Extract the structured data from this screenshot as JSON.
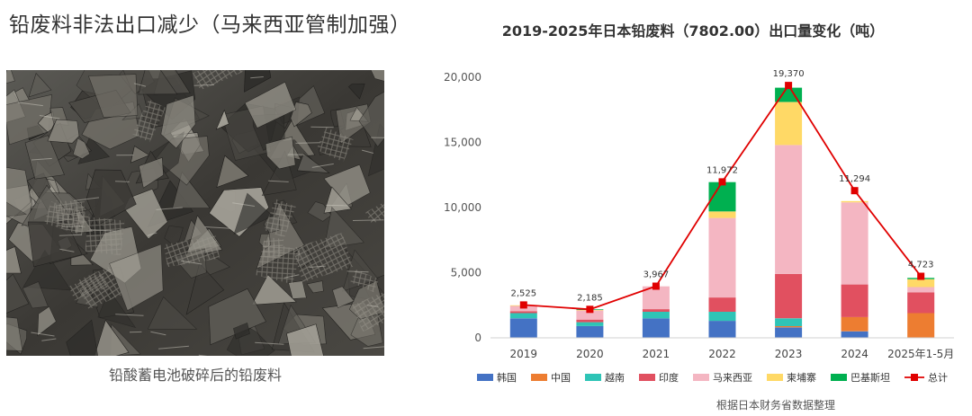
{
  "headline": "铅废料非法出口减少（马来西亚管制加强）",
  "photo": {
    "caption": "铅酸蓄电池破碎后的铅废料"
  },
  "chart_data": {
    "type": "bar",
    "stacked": true,
    "title": "2019-2025年日本铅废料（7802.00）出口量变化（吨）",
    "source_note": "根据日本财务省数据整理",
    "xlabel": "",
    "ylabel": "",
    "ylim": [
      0,
      20000
    ],
    "yticks": [
      0,
      5000,
      10000,
      15000,
      20000
    ],
    "ytick_labels": [
      "0",
      "5,000",
      "10,000",
      "15,000",
      "20,000"
    ],
    "grid": false,
    "legend_position": "bottom",
    "categories": [
      "2019",
      "2020",
      "2021",
      "2022",
      "2023",
      "2024",
      "2025年1-5月"
    ],
    "series": [
      {
        "name": "韩国",
        "color": "#4472C4",
        "values": [
          1500,
          900,
          1500,
          1300,
          800,
          500,
          0
        ]
      },
      {
        "name": "中国",
        "color": "#ED7D31",
        "values": [
          0,
          0,
          0,
          0,
          100,
          1100,
          1900
        ]
      },
      {
        "name": "越南",
        "color": "#2EC4B6",
        "values": [
          400,
          300,
          500,
          700,
          600,
          0,
          0
        ]
      },
      {
        "name": "印度",
        "color": "#E15060",
        "values": [
          150,
          200,
          200,
          1100,
          3400,
          2500,
          1600
        ]
      },
      {
        "name": "马来西亚",
        "color": "#F4B6C2",
        "values": [
          400,
          700,
          1750,
          6100,
          9900,
          6300,
          400
        ]
      },
      {
        "name": "柬埔寨",
        "color": "#FFD966",
        "values": [
          50,
          35,
          0,
          500,
          3300,
          100,
          600
        ]
      },
      {
        "name": "巴基斯坦",
        "color": "#00B050",
        "values": [
          0,
          50,
          0,
          2250,
          1100,
          0,
          100
        ]
      }
    ],
    "total": {
      "name": "总计",
      "color": "#E00000",
      "values": [
        2525,
        2185,
        3967,
        11972,
        19370,
        11294,
        4723
      ],
      "labels": [
        "2,525",
        "2,185",
        "3,967",
        "11,972",
        "19,370",
        "11,294",
        "4,723"
      ]
    }
  }
}
